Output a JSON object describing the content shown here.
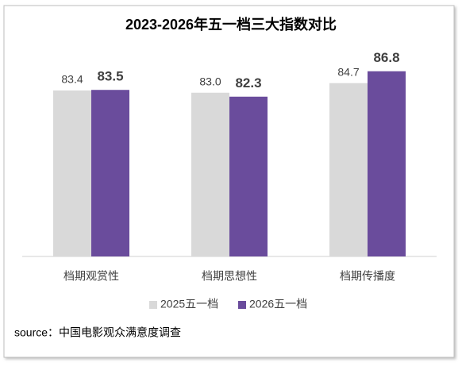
{
  "chart_data": {
    "type": "bar",
    "title": "2023-2026年五一档三大指数对比",
    "categories": [
      "档期观赏性",
      "档期思想性",
      "档期传播度"
    ],
    "series": [
      {
        "name": "2025五一档",
        "color": "#d9d9d9",
        "values": [
          83.4,
          83.0,
          84.7
        ],
        "value_labels": [
          "83.4",
          "83.0",
          "84.7"
        ]
      },
      {
        "name": "2026五一档",
        "color": "#6a4c9c",
        "values": [
          83.5,
          82.3,
          86.8
        ]
      }
    ],
    "ylim": [
      54,
      90
    ],
    "legend": "bottom",
    "source": "source：中国电影观众满意度调查"
  }
}
